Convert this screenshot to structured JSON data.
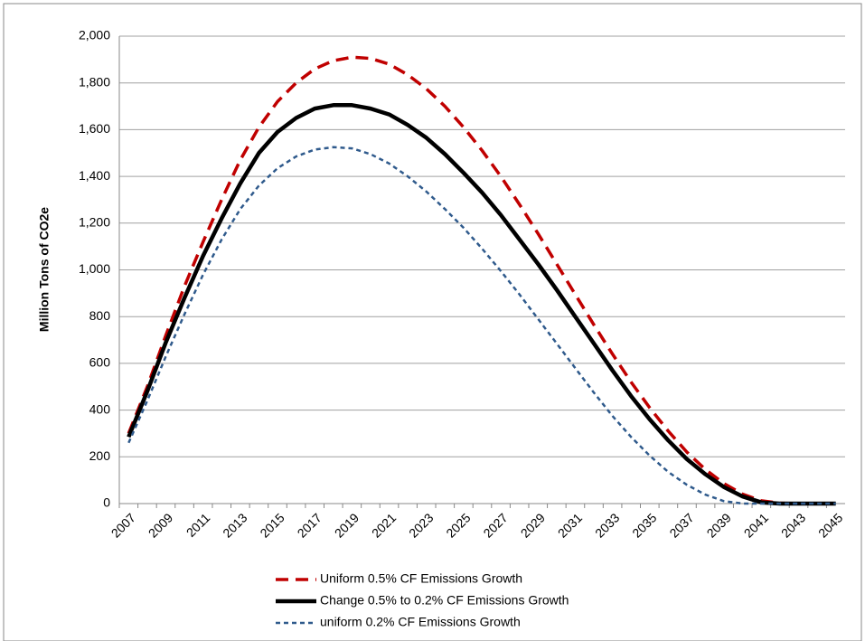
{
  "chart_data": {
    "type": "line",
    "y_label": "Million Tons of CO2e",
    "categories": [
      "2007",
      null,
      "2009",
      null,
      "2011",
      null,
      "2013",
      null,
      "2015",
      null,
      "2017",
      null,
      "2019",
      null,
      "2021",
      null,
      "2023",
      null,
      "2025",
      null,
      "2027",
      null,
      "2029",
      null,
      "2031",
      null,
      "2033",
      null,
      "2035",
      null,
      "2037",
      null,
      "2039",
      null,
      "2041",
      null,
      "2043",
      null,
      "2045"
    ],
    "series": [
      {
        "name": "Uniform 0.5% CF Emissions Growth",
        "color": "#c00000",
        "dash": "14,8",
        "width": 3.5,
        "values": [
          300,
          500,
          720,
          930,
          1120,
          1300,
          1470,
          1610,
          1720,
          1800,
          1860,
          1895,
          1910,
          1905,
          1880,
          1835,
          1775,
          1700,
          1610,
          1510,
          1400,
          1280,
          1155,
          1025,
          895,
          765,
          640,
          520,
          410,
          310,
          220,
          145,
          85,
          40,
          12,
          2,
          0,
          0,
          0
        ]
      },
      {
        "name": "Change 0.5% to 0.2% CF Emissions Growth",
        "color": "#000000",
        "dash": "none",
        "width": 4.5,
        "values": [
          285,
          480,
          690,
          880,
          1060,
          1220,
          1370,
          1500,
          1590,
          1650,
          1690,
          1705,
          1705,
          1690,
          1665,
          1620,
          1565,
          1495,
          1415,
          1330,
          1235,
          1130,
          1025,
          915,
          800,
          685,
          570,
          460,
          360,
          270,
          190,
          125,
          70,
          30,
          5,
          0,
          0,
          0,
          0
        ]
      },
      {
        "name": "uniform 0.2% CF Emissions Growth",
        "color": "#2f5a8c",
        "dash": "5,4",
        "width": 2.5,
        "values": [
          260,
          440,
          630,
          810,
          980,
          1130,
          1260,
          1360,
          1435,
          1485,
          1515,
          1525,
          1520,
          1495,
          1455,
          1400,
          1335,
          1260,
          1180,
          1090,
          995,
          895,
          790,
          685,
          580,
          475,
          375,
          285,
          205,
          135,
          80,
          38,
          10,
          0,
          0,
          0,
          0,
          0,
          0
        ]
      }
    ],
    "ylim": [
      0,
      2000
    ],
    "yticks": [
      0,
      200,
      400,
      600,
      800,
      {
        "value": 1000,
        "label": "1,000"
      },
      {
        "value": 1200,
        "label": "1,200"
      },
      {
        "value": 1400,
        "label": "1,400"
      },
      {
        "value": 1600,
        "label": "1,600"
      },
      {
        "value": 1800,
        "label": "1,800"
      },
      {
        "value": 2000,
        "label": "2,000"
      }
    ],
    "grid": true,
    "legend": "bottom"
  }
}
